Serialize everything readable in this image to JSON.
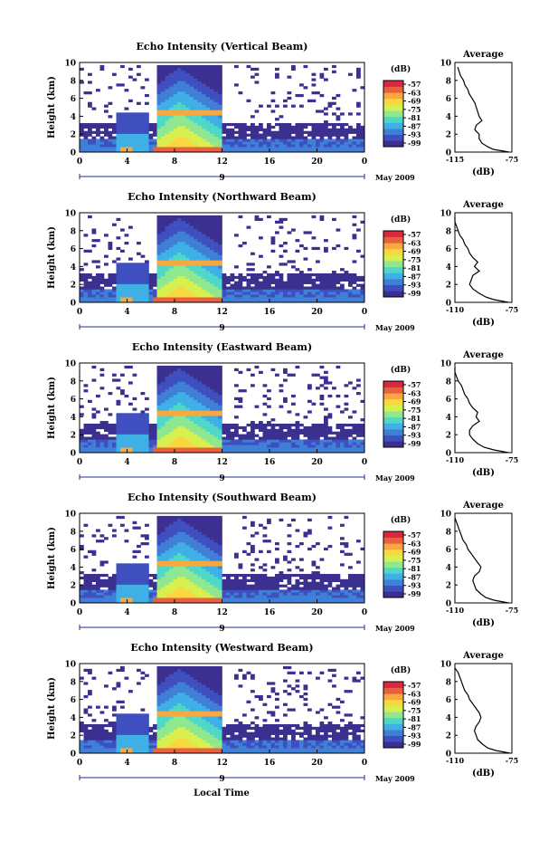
{
  "figure": {
    "xlabel_bottom": "Local Time",
    "date_label": "May 2009",
    "colorbar_unit": "(dB)",
    "colorbar_ticks": [
      "-57",
      "-63",
      "-69",
      "-75",
      "-81",
      "-87",
      "-93",
      "-99"
    ],
    "colormap": [
      "#3b2f8f",
      "#3f4fbf",
      "#3f7fd6",
      "#3fb0e6",
      "#4fd8c8",
      "#8fe88f",
      "#d8f04f",
      "#f8d83f",
      "#f8a83f",
      "#e8603f",
      "#d8283f"
    ]
  },
  "chart_data": [
    {
      "type": "heatmap",
      "title": "Echo Intensity (Vertical Beam)",
      "ylabel": "Height (km)",
      "xlim": [
        0,
        24
      ],
      "ylim": [
        0,
        10
      ],
      "xticks": [
        "0",
        "4",
        "8",
        "12",
        "16",
        "20",
        "0"
      ],
      "yticks": [
        "0",
        "2",
        "4",
        "6",
        "8",
        "10"
      ],
      "day_mark": "9",
      "profile": {
        "title": "Average",
        "xlabel": "(dB)",
        "xticks": [
          "-115",
          "-75"
        ],
        "xlim": [
          -115,
          -75
        ],
        "ylim": [
          0,
          10
        ],
        "yticks": [
          "0",
          "2",
          "4",
          "6",
          "8",
          "10"
        ],
        "heights": [
          0,
          0.3,
          0.6,
          1.0,
          1.5,
          2.0,
          2.5,
          3.0,
          3.5,
          4.0,
          4.5,
          5.0,
          5.5,
          6.0,
          6.5,
          7.0,
          7.5,
          8.0,
          8.5,
          9.0,
          9.5
        ],
        "values": [
          -77,
          -88,
          -92,
          -96,
          -98,
          -98,
          -101,
          -100,
          -96,
          -98,
          -99,
          -100,
          -101,
          -103,
          -105,
          -106,
          -108,
          -109,
          -111,
          -112,
          -113
        ]
      }
    },
    {
      "type": "heatmap",
      "title": "Echo Intensity (Northward Beam)",
      "ylabel": "Height (km)",
      "xlim": [
        0,
        24
      ],
      "ylim": [
        0,
        10
      ],
      "xticks": [
        "0",
        "4",
        "8",
        "12",
        "16",
        "20",
        "0"
      ],
      "yticks": [
        "0",
        "2",
        "4",
        "6",
        "8",
        "10"
      ],
      "day_mark": "9",
      "profile": {
        "title": "Average",
        "xlabel": "(dB)",
        "xticks": [
          "-110",
          "-75"
        ],
        "xlim": [
          -110,
          -75
        ],
        "ylim": [
          0,
          10
        ],
        "yticks": [
          "0",
          "2",
          "4",
          "6",
          "8",
          "10"
        ],
        "heights": [
          0,
          0.3,
          0.6,
          1.0,
          1.5,
          2.0,
          2.5,
          3.0,
          3.5,
          4.0,
          4.5,
          5.0,
          5.5,
          6.0,
          6.5,
          7.0,
          7.5,
          8.0,
          8.5,
          9.0,
          9.5
        ],
        "values": [
          -77,
          -86,
          -91,
          -95,
          -99,
          -101,
          -100,
          -99,
          -95,
          -98,
          -96,
          -99,
          -101,
          -102,
          -104,
          -105,
          -107,
          -108,
          -109,
          -110,
          -110
        ]
      }
    },
    {
      "type": "heatmap",
      "title": "Echo Intensity (Eastward Beam)",
      "ylabel": "Height (km)",
      "xlim": [
        0,
        24
      ],
      "ylim": [
        0,
        10
      ],
      "xticks": [
        "0",
        "4",
        "8",
        "12",
        "16",
        "20",
        "0"
      ],
      "yticks": [
        "0",
        "2",
        "4",
        "6",
        "8",
        "10"
      ],
      "day_mark": "9",
      "profile": {
        "title": "Average",
        "xlabel": "(dB)",
        "xticks": [
          "-110",
          "-75"
        ],
        "xlim": [
          -110,
          -75
        ],
        "ylim": [
          0,
          10
        ],
        "yticks": [
          "0",
          "2",
          "4",
          "6",
          "8",
          "10"
        ],
        "heights": [
          0,
          0.3,
          0.6,
          1.0,
          1.5,
          2.0,
          2.5,
          3.0,
          3.5,
          4.0,
          4.5,
          5.0,
          5.5,
          6.0,
          6.5,
          7.0,
          7.5,
          8.0,
          8.5,
          9.0,
          9.5
        ],
        "values": [
          -77,
          -86,
          -92,
          -96,
          -99,
          -101,
          -101,
          -99,
          -95,
          -97,
          -96,
          -99,
          -101,
          -102,
          -104,
          -105,
          -106,
          -108,
          -109,
          -110,
          -110
        ]
      }
    },
    {
      "type": "heatmap",
      "title": "Echo Intensity (Southward Beam)",
      "ylabel": "Height (km)",
      "xlim": [
        0,
        24
      ],
      "ylim": [
        0,
        10
      ],
      "xticks": [
        "0",
        "4",
        "8",
        "12",
        "16",
        "20",
        "0"
      ],
      "yticks": [
        "0",
        "2",
        "4",
        "6",
        "8",
        "10"
      ],
      "day_mark": "9",
      "profile": {
        "title": "Average",
        "xlabel": "(dB)",
        "xticks": [
          "-110",
          "-75"
        ],
        "xlim": [
          -110,
          -75
        ],
        "ylim": [
          0,
          10
        ],
        "yticks": [
          "0",
          "2",
          "4",
          "6",
          "8",
          "10"
        ],
        "heights": [
          0,
          0.3,
          0.6,
          1.0,
          1.5,
          2.0,
          2.5,
          3.0,
          3.5,
          4.0,
          4.5,
          5.0,
          5.5,
          6.0,
          6.5,
          7.0,
          7.5,
          8.0,
          8.5,
          9.0,
          9.5
        ],
        "values": [
          -77,
          -86,
          -91,
          -94,
          -97,
          -98,
          -99,
          -98,
          -95,
          -94,
          -96,
          -98,
          -100,
          -102,
          -103,
          -105,
          -106,
          -107,
          -108,
          -109,
          -110
        ]
      }
    },
    {
      "type": "heatmap",
      "title": "Echo Intensity (Westward Beam)",
      "ylabel": "Height (km)",
      "xlim": [
        0,
        24
      ],
      "ylim": [
        0,
        10
      ],
      "xticks": [
        "0",
        "4",
        "8",
        "12",
        "16",
        "20",
        "0"
      ],
      "yticks": [
        "0",
        "2",
        "4",
        "6",
        "8",
        "10"
      ],
      "day_mark": "9",
      "profile": {
        "title": "Average",
        "xlabel": "(dB)",
        "xticks": [
          "-110",
          "-75"
        ],
        "xlim": [
          -110,
          -75
        ],
        "ylim": [
          0,
          10
        ],
        "yticks": [
          "0",
          "2",
          "4",
          "6",
          "8",
          "10"
        ],
        "heights": [
          0,
          0.3,
          0.6,
          1.0,
          1.5,
          2.0,
          2.5,
          3.0,
          3.5,
          4.0,
          4.5,
          5.0,
          5.5,
          6.0,
          6.5,
          7.0,
          7.5,
          8.0,
          8.5,
          9.0,
          9.5
        ],
        "values": [
          -76,
          -85,
          -90,
          -93,
          -96,
          -97,
          -98,
          -97,
          -95,
          -94,
          -95,
          -97,
          -99,
          -101,
          -102,
          -104,
          -105,
          -106,
          -107,
          -108,
          -110
        ]
      }
    }
  ]
}
